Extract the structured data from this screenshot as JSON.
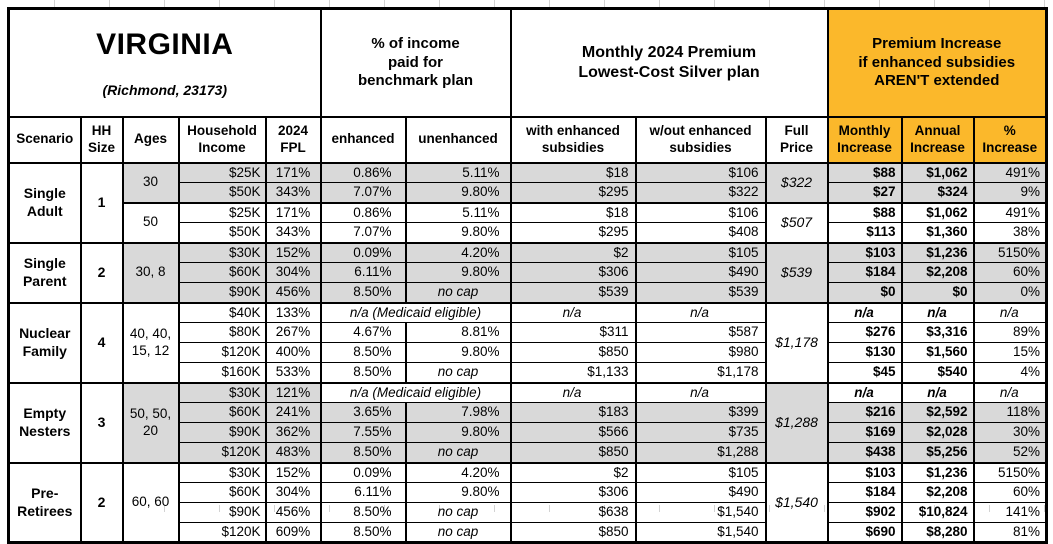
{
  "title": {
    "state": "VIRGINIA",
    "location": "(Richmond, 23173)"
  },
  "sections": {
    "benchmark": "% of income\npaid for\nbenchmark plan",
    "premium": "Monthly 2024 Premium\nLowest-Cost Silver plan",
    "increase": "Premium Increase\nif enhanced subsidies\nAREN'T extended"
  },
  "columns": {
    "scenario": "Scenario",
    "hh_size": "HH\nSize",
    "ages": "Ages",
    "income": "Household\nIncome",
    "fpl": "2024\nFPL",
    "enhanced": "enhanced",
    "unenhanced": "unenhanced",
    "with_sub": "with enhanced\nsubsidies",
    "wout_sub": "w/out enhanced\nsubsidies",
    "full_price": "Full\nPrice",
    "monthly": "Monthly\nIncrease",
    "annual": "Annual\nIncrease",
    "pct": "%\nIncrease"
  },
  "colors": {
    "accent_orange": "#fbb82b",
    "row_gray": "#d9d9d9"
  },
  "table": {
    "groups": [
      {
        "scenario": "Single\nAdult",
        "hh": "1",
        "blocks": [
          {
            "ages": "30",
            "shade": true,
            "full_price": "$322",
            "rows": [
              {
                "income": "$25K",
                "fpl": "171%",
                "enh": "0.86%",
                "unenh": "5.11%",
                "with_sub": "$18",
                "wout_sub": "$106",
                "monthly": "$88",
                "annual": "$1,062",
                "pct": "491%"
              },
              {
                "income": "$50K",
                "fpl": "343%",
                "enh": "7.07%",
                "unenh": "9.80%",
                "with_sub": "$295",
                "wout_sub": "$322",
                "monthly": "$27",
                "annual": "$324",
                "pct": "9%"
              }
            ]
          },
          {
            "ages": "50",
            "shade": false,
            "full_price": "$507",
            "rows": [
              {
                "income": "$25K",
                "fpl": "171%",
                "enh": "0.86%",
                "unenh": "5.11%",
                "with_sub": "$18",
                "wout_sub": "$106",
                "monthly": "$88",
                "annual": "$1,062",
                "pct": "491%"
              },
              {
                "income": "$50K",
                "fpl": "343%",
                "enh": "7.07%",
                "unenh": "9.80%",
                "with_sub": "$295",
                "wout_sub": "$408",
                "monthly": "$113",
                "annual": "$1,360",
                "pct": "38%"
              }
            ]
          }
        ]
      },
      {
        "scenario": "Single\nParent",
        "hh": "2",
        "blocks": [
          {
            "ages": "30, 8",
            "shade": true,
            "full_price": "$539",
            "rows": [
              {
                "income": "$30K",
                "fpl": "152%",
                "enh": "0.09%",
                "unenh": "4.20%",
                "with_sub": "$2",
                "wout_sub": "$105",
                "monthly": "$103",
                "annual": "$1,236",
                "pct": "5150%"
              },
              {
                "income": "$60K",
                "fpl": "304%",
                "enh": "6.11%",
                "unenh": "9.80%",
                "with_sub": "$306",
                "wout_sub": "$490",
                "monthly": "$184",
                "annual": "$2,208",
                "pct": "60%"
              },
              {
                "income": "$90K",
                "fpl": "456%",
                "enh": "8.50%",
                "unenh": "no cap",
                "no_cap": true,
                "with_sub": "$539",
                "wout_sub": "$539",
                "monthly": "$0",
                "annual": "$0",
                "pct": "0%"
              }
            ]
          }
        ]
      },
      {
        "scenario": "Nuclear\nFamily",
        "hh": "4",
        "blocks": [
          {
            "ages": "40, 40,\n15, 12",
            "shade": false,
            "full_price": "$1,178",
            "rows": [
              {
                "income": "$40K",
                "fpl": "133%",
                "medicaid": "n/a (Medicaid eligible)",
                "na": true,
                "with_sub": "n/a",
                "wout_sub": "n/a",
                "monthly": "n/a",
                "annual": "n/a",
                "pct": "n/a"
              },
              {
                "income": "$80K",
                "fpl": "267%",
                "enh": "4.67%",
                "unenh": "8.81%",
                "with_sub": "$311",
                "wout_sub": "$587",
                "monthly": "$276",
                "annual": "$3,316",
                "pct": "89%"
              },
              {
                "income": "$120K",
                "fpl": "400%",
                "enh": "8.50%",
                "unenh": "9.80%",
                "with_sub": "$850",
                "wout_sub": "$980",
                "monthly": "$130",
                "annual": "$1,560",
                "pct": "15%"
              },
              {
                "income": "$160K",
                "fpl": "533%",
                "enh": "8.50%",
                "unenh": "no cap",
                "no_cap": true,
                "with_sub": "$1,133",
                "wout_sub": "$1,178",
                "monthly": "$45",
                "annual": "$540",
                "pct": "4%"
              }
            ]
          }
        ]
      },
      {
        "scenario": "Empty\nNesters",
        "hh": "3",
        "blocks": [
          {
            "ages": "50, 50,\n20",
            "shade": true,
            "full_price": "$1,288",
            "rows": [
              {
                "income": "$30K",
                "fpl": "121%",
                "medicaid": "n/a (Medicaid eligible)",
                "na": true,
                "with_sub": "n/a",
                "wout_sub": "n/a",
                "monthly": "n/a",
                "annual": "n/a",
                "pct": "n/a"
              },
              {
                "income": "$60K",
                "fpl": "241%",
                "enh": "3.65%",
                "unenh": "7.98%",
                "with_sub": "$183",
                "wout_sub": "$399",
                "monthly": "$216",
                "annual": "$2,592",
                "pct": "118%"
              },
              {
                "income": "$90K",
                "fpl": "362%",
                "enh": "7.55%",
                "unenh": "9.80%",
                "with_sub": "$566",
                "wout_sub": "$735",
                "monthly": "$169",
                "annual": "$2,028",
                "pct": "30%"
              },
              {
                "income": "$120K",
                "fpl": "483%",
                "enh": "8.50%",
                "unenh": "no cap",
                "no_cap": true,
                "with_sub": "$850",
                "wout_sub": "$1,288",
                "monthly": "$438",
                "annual": "$5,256",
                "pct": "52%"
              }
            ]
          }
        ]
      },
      {
        "scenario": "Pre-\nRetirees",
        "hh": "2",
        "blocks": [
          {
            "ages": "60, 60",
            "shade": false,
            "full_price": "$1,540",
            "rows": [
              {
                "income": "$30K",
                "fpl": "152%",
                "enh": "0.09%",
                "unenh": "4.20%",
                "with_sub": "$2",
                "wout_sub": "$105",
                "monthly": "$103",
                "annual": "$1,236",
                "pct": "5150%"
              },
              {
                "income": "$60K",
                "fpl": "304%",
                "enh": "6.11%",
                "unenh": "9.80%",
                "with_sub": "$306",
                "wout_sub": "$490",
                "monthly": "$184",
                "annual": "$2,208",
                "pct": "60%"
              },
              {
                "income": "$90K",
                "fpl": "456%",
                "enh": "8.50%",
                "unenh": "no cap",
                "no_cap": true,
                "with_sub": "$638",
                "wout_sub": "$1,540",
                "monthly": "$902",
                "annual": "$10,824",
                "pct": "141%"
              },
              {
                "income": "$120K",
                "fpl": "609%",
                "enh": "8.50%",
                "unenh": "no cap",
                "no_cap": true,
                "with_sub": "$850",
                "wout_sub": "$1,540",
                "monthly": "$690",
                "annual": "$8,280",
                "pct": "81%"
              }
            ]
          }
        ]
      }
    ]
  }
}
